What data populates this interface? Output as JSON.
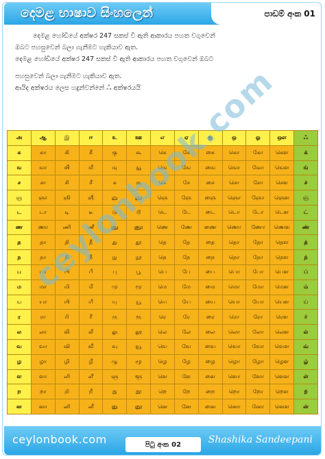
{
  "header": {
    "title": "දෙමළ භාෂාව සිංහලෙන්",
    "lesson_label": "පාඩම් අංක",
    "lesson_number": "01"
  },
  "intro": {
    "line1": "දෙමළ හෝඩියේ අක්ෂර 247 සකස් වී ඇති ආකාරය පහත වගුවෙන්",
    "line2": "ඔබට පහසුවෙන් බලා ගැනීමට හැකියාව ඇත.",
    "line3": "දෙමළ හෝඩියේ අක්ෂර 247 සකස් වී ඇති ආකාරය පහත වගුවෙන් ඔබට",
    "line4": "පහසුවෙන් බලා ගැනීමට හැකියාව ඇත.",
    "line5": "ආයිද අක්ෂරය ලෙස හදුන්වන්නේ   ஃ  අක්ෂරයයි"
  },
  "table": {
    "header": [
      "அ",
      "ஆ",
      "இ",
      "ஈ",
      "உ",
      "ஊ",
      "எ",
      "ஏ",
      "ஐ",
      "ஒ",
      "ஓ",
      "ஔ",
      "ஃ"
    ],
    "rows": [
      [
        "க",
        "கா",
        "கி",
        "கீ",
        "கு",
        "கூ",
        "கெ",
        "கே",
        "கை",
        "கொ",
        "கோ",
        "கௌ",
        "க்"
      ],
      [
        "ங",
        "ஙா",
        "ஙி",
        "ஙீ",
        "ஙு",
        "ஙூ",
        "ஙெ",
        "ஙே",
        "ஙை",
        "ஙொ",
        "ஙோ",
        "ஙௌ",
        "ங்"
      ],
      [
        "ச",
        "சா",
        "சி",
        "சீ",
        "சு",
        "சூ",
        "செ",
        "சே",
        "சை",
        "சொ",
        "சோ",
        "சௌ",
        "ச்"
      ],
      [
        "ஞ",
        "ஞா",
        "ஞி",
        "ஞீ",
        "ஞு",
        "ஞூ",
        "ஞெ",
        "ஞே",
        "ஞை",
        "ஞொ",
        "ஞோ",
        "ஞௌ",
        "ஞ்"
      ],
      [
        "ட",
        "டா",
        "டி",
        "டீ",
        "டு",
        "டூ",
        "டெ",
        "டே",
        "டை",
        "டொ",
        "டோ",
        "டௌ",
        "ட்"
      ],
      [
        "ண",
        "ணா",
        "ணி",
        "ணீ",
        "ணு",
        "ணூ",
        "ணெ",
        "ணே",
        "ணை",
        "ணொ",
        "ணோ",
        "ணௌ",
        "ண்"
      ],
      [
        "த",
        "தா",
        "தி",
        "தீ",
        "து",
        "தூ",
        "தெ",
        "தே",
        "தை",
        "தொ",
        "தோ",
        "தௌ",
        "த்"
      ],
      [
        "ந",
        "நா",
        "நி",
        "நீ",
        "நு",
        "நூ",
        "நெ",
        "நே",
        "நை",
        "நொ",
        "நோ",
        "நௌ",
        "ந்"
      ],
      [
        "ப",
        "பா",
        "பி",
        "பீ",
        "பு",
        "பூ",
        "பெ",
        "பே",
        "பை",
        "பொ",
        "போ",
        "பௌ",
        "ப்"
      ],
      [
        "ம",
        "மா",
        "மி",
        "மீ",
        "மு",
        "மூ",
        "மெ",
        "மே",
        "மை",
        "மொ",
        "மோ",
        "மௌ",
        "ம்"
      ],
      [
        "ய",
        "யா",
        "யி",
        "யீ",
        "யு",
        "யூ",
        "யெ",
        "யே",
        "யை",
        "யொ",
        "யோ",
        "யௌ",
        "ய்"
      ],
      [
        "ர",
        "ரா",
        "ரி",
        "ரீ",
        "ரு",
        "ரூ",
        "ரெ",
        "ரே",
        "ரை",
        "ரொ",
        "ரோ",
        "ரௌ",
        "ர்"
      ],
      [
        "ல",
        "லா",
        "லி",
        "லீ",
        "லு",
        "லூ",
        "லெ",
        "லே",
        "லை",
        "லொ",
        "லோ",
        "லௌ",
        "ல்"
      ],
      [
        "வ",
        "வா",
        "வி",
        "வீ",
        "வு",
        "வூ",
        "வெ",
        "வே",
        "வை",
        "வொ",
        "வோ",
        "வௌ",
        "வ்"
      ],
      [
        "ழ",
        "ழா",
        "ழி",
        "ழீ",
        "ழு",
        "ழூ",
        "ழெ",
        "ழே",
        "ழை",
        "ழொ",
        "ழோ",
        "ழௌ",
        "ழ்"
      ],
      [
        "ள",
        "ளா",
        "ளி",
        "ளீ",
        "ளு",
        "ளூ",
        "ளெ",
        "ளே",
        "ளை",
        "ளொ",
        "ளோ",
        "ளௌ",
        "ள்"
      ],
      [
        "ற",
        "றா",
        "றி",
        "றீ",
        "று",
        "றூ",
        "றெ",
        "றே",
        "றை",
        "றொ",
        "றோ",
        "றௌ",
        "ற்"
      ],
      [
        "ன",
        "னா",
        "னி",
        "னீ",
        "னு",
        "னூ",
        "னெ",
        "னே",
        "னை",
        "னொ",
        "னோ",
        "னௌ",
        "ன்"
      ]
    ]
  },
  "watermark": "ceylonbook.com",
  "footer": {
    "site": "ceylonbook.com",
    "page_label": "පිටු අංක",
    "page_number": "02",
    "author": "Shashika Sandeepani"
  },
  "colors": {
    "bar": "#2aa6e6",
    "cell": "#f7b21a",
    "highlight": "#fff14a",
    "last_col": "#9ccb3b"
  }
}
